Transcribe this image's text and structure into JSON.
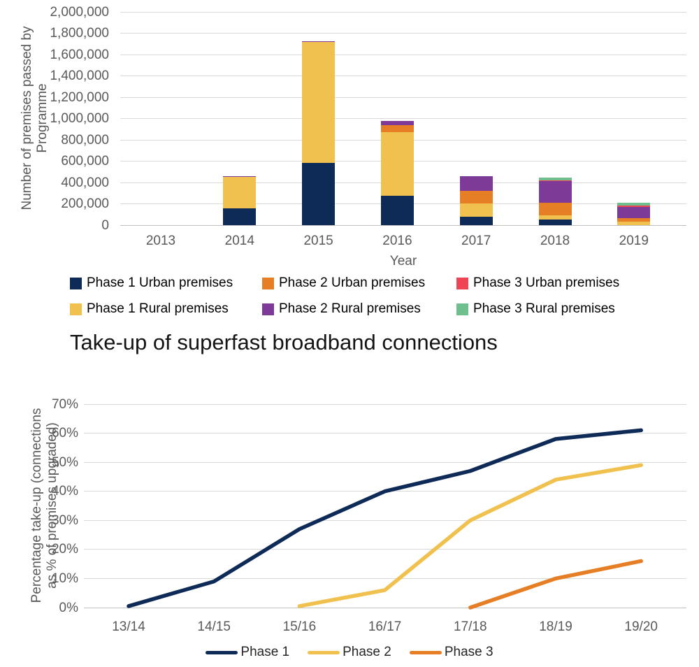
{
  "colors": {
    "navy": "#0e2a57",
    "gold": "#f0c14e",
    "orange": "#e67e25",
    "purple": "#7d3a97",
    "red": "#ef4456",
    "green": "#6fbe8e",
    "grid": "#d9d9d9",
    "zero_line": "#c0c0c0",
    "axis_text": "#595959",
    "legend_text": "#000000"
  },
  "chart_data": [
    {
      "type": "bar",
      "stacked": true,
      "title": "",
      "xlabel": "Year",
      "ylabel": "Number of premises passed by Programme",
      "ylabel_lines": [
        "Number of premises passed by",
        "Programme"
      ],
      "categories": [
        "2013",
        "2014",
        "2015",
        "2016",
        "2017",
        "2018",
        "2019"
      ],
      "ylim": [
        0,
        2000000
      ],
      "ytick_step": 200000,
      "ytick_labels": [
        "0",
        "200,000",
        "400,000",
        "600,000",
        "800,000",
        "1,000,000",
        "1,200,000",
        "1,400,000",
        "1,600,000",
        "1,800,000",
        "2,000,000"
      ],
      "grid": true,
      "legend_position": "bottom",
      "series": [
        {
          "name": "Phase 1 Urban premises",
          "color_key": "navy",
          "values": [
            0,
            155000,
            585000,
            275000,
            78000,
            50000,
            0
          ]
        },
        {
          "name": "Phase 1 Rural premises",
          "color_key": "gold",
          "values": [
            0,
            295000,
            1130000,
            595000,
            125000,
            45000,
            30000
          ]
        },
        {
          "name": "Phase 2 Urban premises",
          "color_key": "orange",
          "values": [
            0,
            0,
            0,
            68000,
            120000,
            118000,
            36000
          ]
        },
        {
          "name": "Phase 2 Rural premises",
          "color_key": "purple",
          "values": [
            0,
            8000,
            10000,
            40000,
            134000,
            197000,
            103000
          ]
        },
        {
          "name": "Phase 3 Urban premises",
          "color_key": "red",
          "values": [
            0,
            0,
            0,
            0,
            0,
            10000,
            13000
          ]
        },
        {
          "name": "Phase 3 Rural premises",
          "color_key": "green",
          "values": [
            0,
            0,
            0,
            0,
            0,
            25000,
            26000
          ]
        }
      ],
      "legend_layout": [
        [
          0,
          2,
          4
        ],
        [
          1,
          3,
          5
        ]
      ]
    },
    {
      "type": "line",
      "title": "Take-up of superfast broadband connections",
      "xlabel": "",
      "ylabel": "Percentage take-up (connections as % of premises upgraded)",
      "ylabel_lines": [
        "Percentage take-up (connections",
        "as % of premises upgraded)"
      ],
      "categories": [
        "13/14",
        "14/15",
        "15/16",
        "16/17",
        "17/18",
        "18/19",
        "19/20"
      ],
      "ylim": [
        0,
        70
      ],
      "ytick_step": 10,
      "ytick_labels": [
        "0%",
        "10%",
        "20%",
        "30%",
        "40%",
        "50%",
        "60%",
        "70%"
      ],
      "grid": true,
      "legend_position": "bottom",
      "series": [
        {
          "name": "Phase 1",
          "color_key": "navy",
          "values": [
            0.5,
            9,
            27,
            40,
            47,
            58,
            61
          ]
        },
        {
          "name": "Phase 2",
          "color_key": "gold",
          "values": [
            null,
            null,
            0.5,
            6,
            30,
            44,
            49
          ]
        },
        {
          "name": "Phase 3",
          "color_key": "orange",
          "values": [
            null,
            null,
            null,
            null,
            0,
            10,
            16
          ]
        }
      ]
    }
  ]
}
